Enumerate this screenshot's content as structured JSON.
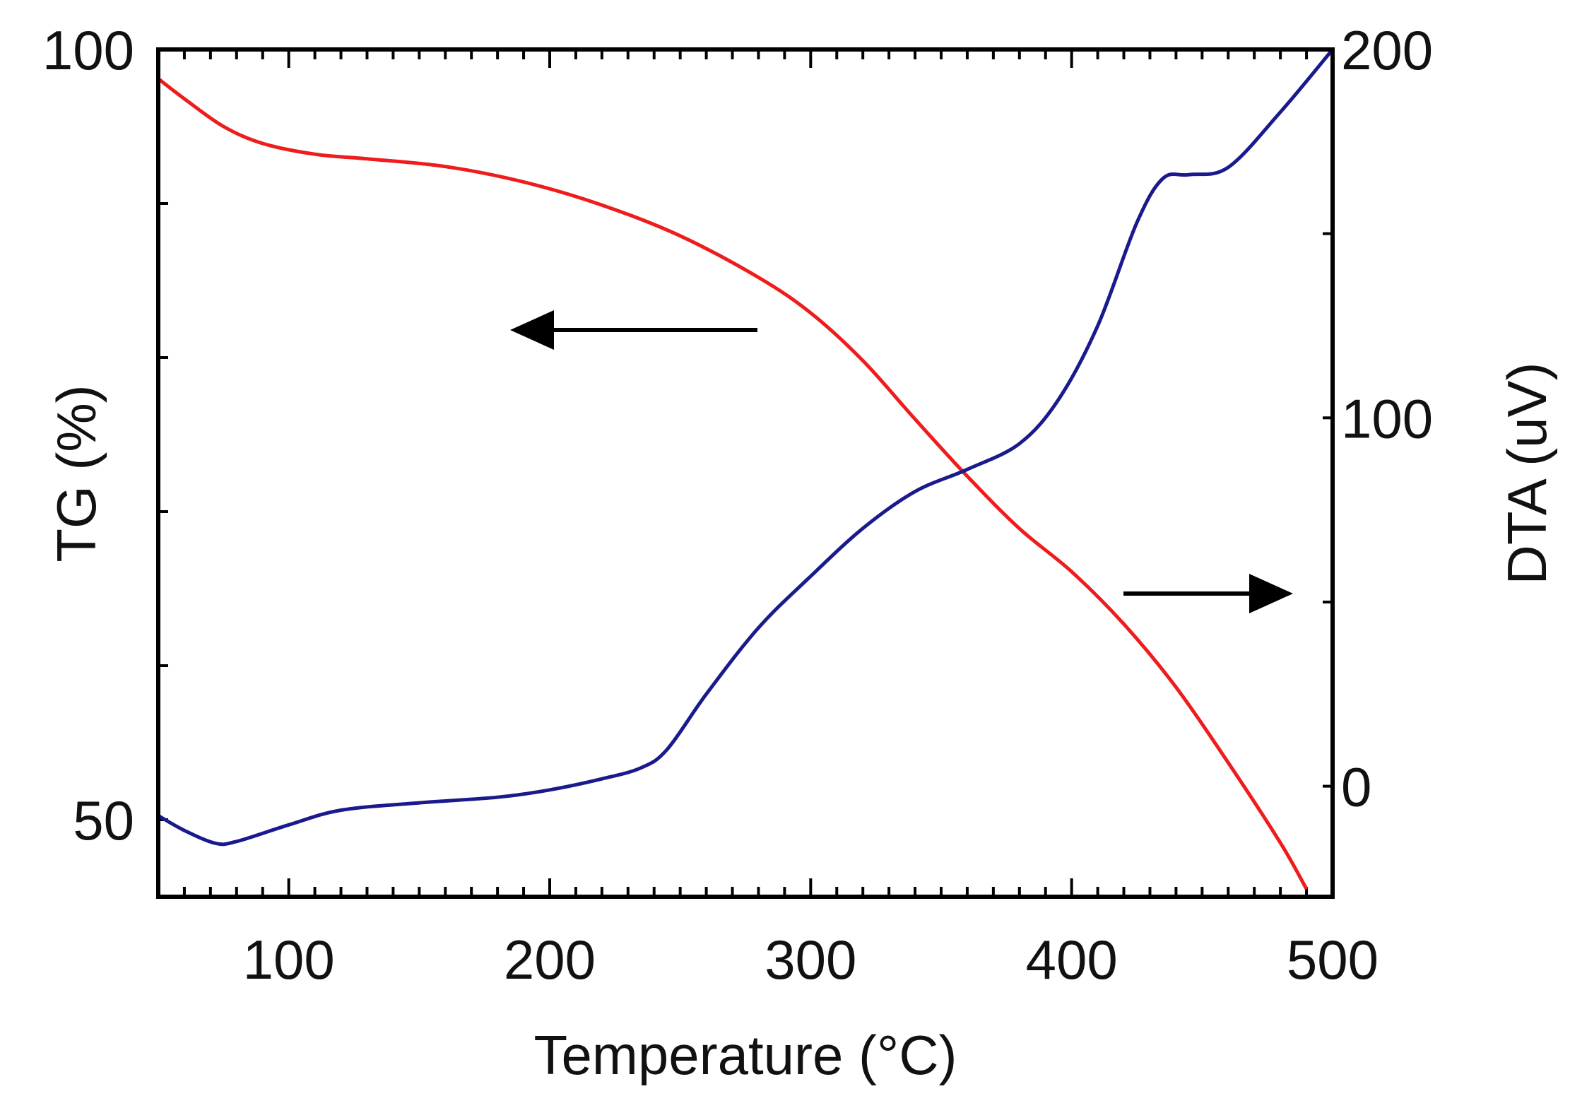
{
  "chart_data": {
    "type": "line",
    "title": "",
    "xlabel": "Temperature (°C)",
    "ylabel_left": "TG (%)",
    "ylabel_right": "DTA (uV)",
    "xlim": [
      50,
      500
    ],
    "ylim_left": [
      45,
      100
    ],
    "ylim_right": [
      -30,
      200
    ],
    "x_ticks": [
      100,
      200,
      300,
      400,
      500
    ],
    "x_tick_labels": [
      "100",
      "200",
      "300",
      "400",
      "500"
    ],
    "y_left_tick_labels": [
      {
        "value": 100,
        "label": "100"
      },
      {
        "value": 50,
        "label": "50"
      }
    ],
    "y_right_tick_labels": [
      {
        "value": 200,
        "label": "200"
      },
      {
        "value": 100,
        "label": "100"
      },
      {
        "value": 0,
        "label": "0"
      }
    ],
    "grid": false,
    "series": [
      {
        "name": "TG",
        "axis": "left",
        "color": "#ee1c1c",
        "x": [
          50,
          60,
          75,
          90,
          110,
          130,
          160,
          190,
          220,
          250,
          280,
          300,
          320,
          340,
          360,
          380,
          400,
          420,
          440,
          460,
          480,
          490
        ],
        "y": [
          98.1,
          96.8,
          95.0,
          93.9,
          93.2,
          92.9,
          92.4,
          91.4,
          89.9,
          87.9,
          85.2,
          82.9,
          79.8,
          76.0,
          72.3,
          68.9,
          66.1,
          62.7,
          58.6,
          53.7,
          48.5,
          45.5
        ]
      },
      {
        "name": "DTA",
        "axis": "right",
        "color": "#1a1a8c",
        "x": [
          50,
          60,
          72,
          80,
          100,
          120,
          150,
          180,
          200,
          220,
          235,
          245,
          260,
          280,
          300,
          320,
          340,
          360,
          380,
          395,
          410,
          425,
          435,
          445,
          460,
          480,
          500
        ],
        "y": [
          -8.0,
          -12.0,
          -15.5,
          -15.0,
          -10.5,
          -6.5,
          -4.5,
          -3.0,
          -1.0,
          2.0,
          5.0,
          10.0,
          25.0,
          43.0,
          57.0,
          70.0,
          80.0,
          86.0,
          93.0,
          105.0,
          125.0,
          153.0,
          165.0,
          166.0,
          168.0,
          183.0,
          200.0
        ]
      }
    ],
    "annotations": [
      {
        "type": "arrow",
        "direction": "left",
        "meaning": "TG curve uses left axis",
        "color": "#000000"
      },
      {
        "type": "arrow",
        "direction": "right",
        "meaning": "DTA curve uses right axis",
        "color": "#000000"
      }
    ]
  }
}
